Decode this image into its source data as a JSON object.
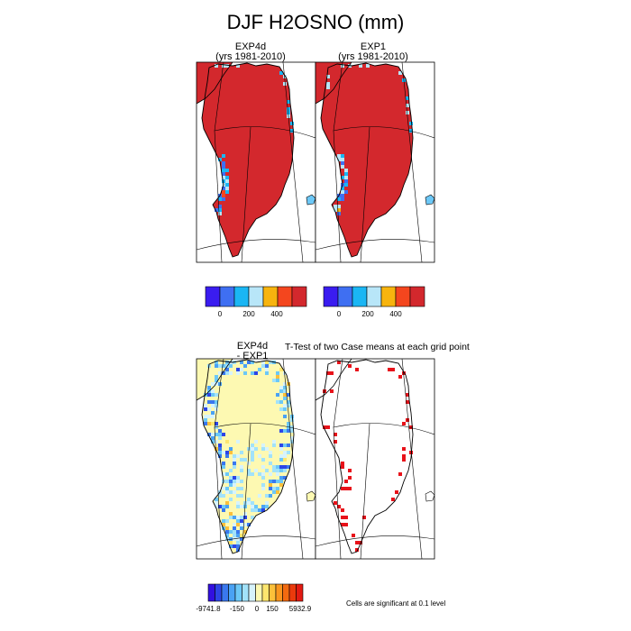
{
  "title": "DJF H2OSNO (mm)",
  "panels": [
    {
      "id": "exp4d",
      "title_lines": [
        "EXP4d",
        "(yrs 1981-2010)"
      ]
    },
    {
      "id": "exp1",
      "title_lines": [
        "EXP1",
        "(yrs 1981-2010)"
      ]
    },
    {
      "id": "diff",
      "title_lines": [
        "EXP4d",
        "- EXP1"
      ]
    },
    {
      "id": "ttest",
      "title_lines": [
        "T-Test of two Case means at each grid point"
      ]
    }
  ],
  "colorbars": {
    "top": {
      "colors": [
        "#3a1cf0",
        "#3f6ff2",
        "#1ab6f4",
        "#b8e6f8",
        "#f7b40e",
        "#f4461e",
        "#d3282d"
      ],
      "tick_labels": [
        "0",
        "200",
        "400"
      ]
    },
    "diff": {
      "colors": [
        "#3210e0",
        "#2d45e6",
        "#3a78ee",
        "#4aa2f4",
        "#6cc8f7",
        "#a2e2fa",
        "#d7f3fc",
        "#fdf9b2",
        "#fde66e",
        "#fcc03a",
        "#f9951e",
        "#f26a10",
        "#ea3a0c",
        "#e21a12"
      ],
      "tick_labels": [
        "-9741.8",
        "-150",
        "0",
        "150",
        "5932.9"
      ]
    }
  },
  "note": "Cells are significant at 0.1 level",
  "chart_data": [
    {
      "type": "heatmap",
      "panel": "EXP4d (yrs 1981-2010)",
      "variable": "H2OSNO",
      "units": "mm",
      "season": "DJF",
      "years": "1981-2010",
      "colorbar_ticks": [
        0,
        200,
        400
      ],
      "dominant_class": ">400",
      "region": "Greenland"
    },
    {
      "type": "heatmap",
      "panel": "EXP1 (yrs 1981-2010)",
      "variable": "H2OSNO",
      "units": "mm",
      "season": "DJF",
      "years": "1981-2010",
      "colorbar_ticks": [
        0,
        200,
        400
      ],
      "dominant_class": ">400",
      "region": "Greenland"
    },
    {
      "type": "heatmap",
      "panel": "EXP4d - EXP1",
      "variable": "H2OSNO difference",
      "units": "mm",
      "colorbar_ticks": [
        -9741.8,
        -150,
        0,
        150,
        5932.9
      ],
      "dominant_class": "0 to 150",
      "region": "Greenland"
    },
    {
      "type": "heatmap",
      "panel": "T-Test of two Case means at each grid point",
      "significance_level": 0.1,
      "significant_color": "#e8121a",
      "region": "Greenland"
    }
  ]
}
